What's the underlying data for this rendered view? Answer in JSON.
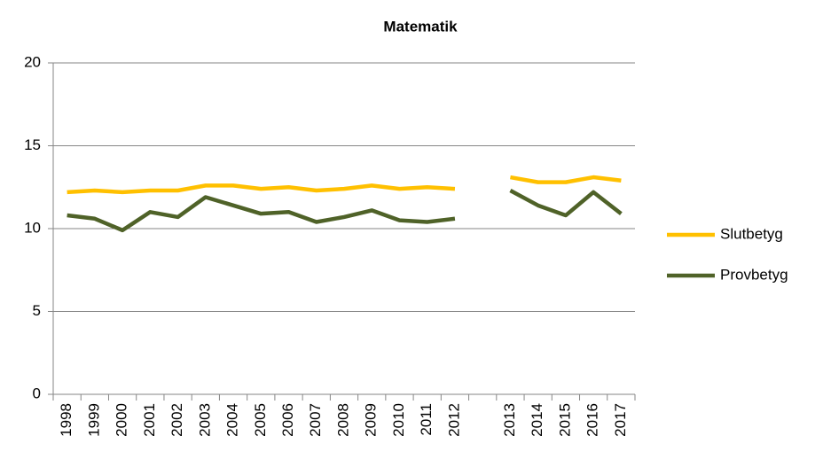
{
  "chart_data": {
    "type": "line",
    "title": "Matematik",
    "categories": [
      "1998",
      "1999",
      "2000",
      "2001",
      "2002",
      "2003",
      "2004",
      "2005",
      "2006",
      "2007",
      "2008",
      "2009",
      "2010",
      "2011",
      "2012",
      null,
      "2013",
      "2014",
      "2015",
      "2016",
      "2017"
    ],
    "series": [
      {
        "name": "Slutbetyg",
        "color": "#ffc000",
        "values": [
          12.2,
          12.3,
          12.2,
          12.3,
          12.3,
          12.6,
          12.6,
          12.4,
          12.5,
          12.3,
          12.4,
          12.6,
          12.4,
          12.5,
          12.4,
          null,
          13.1,
          12.8,
          12.8,
          13.1,
          12.9
        ]
      },
      {
        "name": "Provbetyg",
        "color": "#4f6228",
        "values": [
          10.8,
          10.6,
          9.9,
          11.0,
          10.7,
          11.9,
          11.4,
          10.9,
          11.0,
          10.4,
          10.7,
          11.1,
          10.5,
          10.4,
          10.6,
          null,
          12.3,
          11.4,
          10.8,
          12.2,
          10.9
        ]
      }
    ],
    "ylim": [
      0,
      20
    ],
    "yticks": [
      0,
      5,
      10,
      15,
      20
    ],
    "grid": true,
    "legend": "right"
  }
}
